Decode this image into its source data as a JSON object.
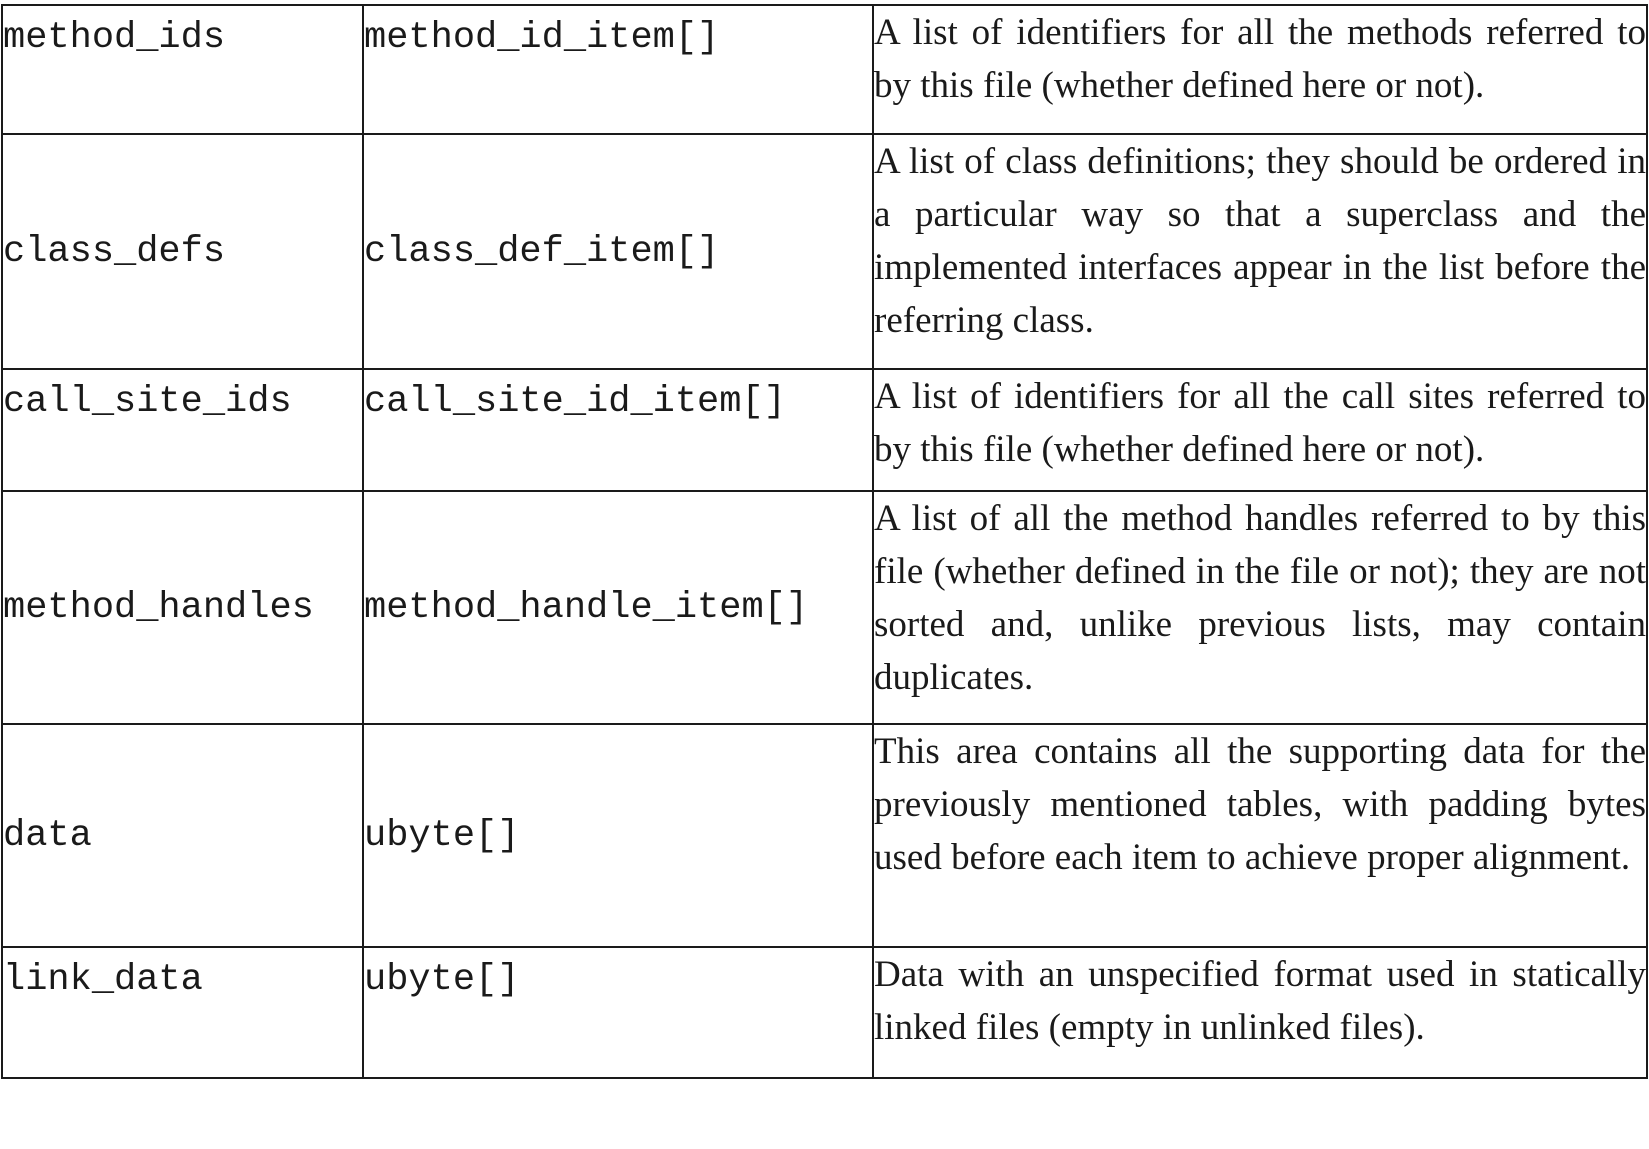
{
  "table": {
    "rows": [
      {
        "name": "method_ids",
        "type": "method_id_item[]",
        "description": "A list of identifiers for all the methods referred to by this file (whether defined here or not)."
      },
      {
        "name": "class_defs",
        "type": "class_def_item[]",
        "description": "A list of class definitions; they should be ordered in a particular way so that a superclass and the implemented interfaces appear in the list before the referring class."
      },
      {
        "name": "call_site_ids",
        "type": "call_site_id_item[]",
        "description": "A list of identifiers for all the call sites referred to by this file (whether defined here or not)."
      },
      {
        "name": "method_handles",
        "type": "method_handle_item[]",
        "description": "A list of all the method handles referred to by this file (whether defined in the file or not); they are not sorted and, unlike previous lists, may contain duplicates."
      },
      {
        "name": "data",
        "type": "ubyte[]",
        "description": "This area contains all the supporting data for the previously mentioned tables, with padding bytes used before each item to achieve proper alignment."
      },
      {
        "name": "link_data",
        "type": "ubyte[]",
        "description": "Data with an unspecified format used in statically linked files (empty in unlinked files)."
      }
    ]
  }
}
